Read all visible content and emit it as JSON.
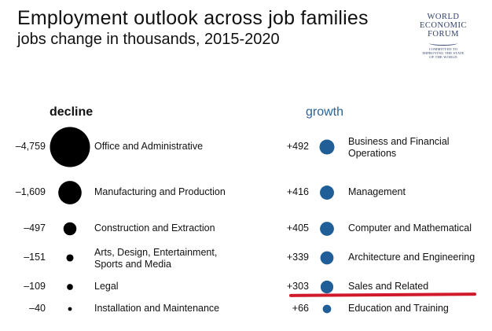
{
  "header": {
    "title": "Employment outlook across job families",
    "subtitle": "jobs change in thousands, 2015-2020"
  },
  "logo": {
    "line1": "WORLD",
    "line2": "ECONOMIC",
    "line3": "FORUM",
    "tagline": [
      "COMMITTED TO",
      "IMPROVING THE STATE",
      "OF THE WORLD"
    ]
  },
  "colors": {
    "decline": "#000000",
    "growth": "#1f5e96",
    "highlight": "#d0192b"
  },
  "chart_data": [
    {
      "type": "scatter",
      "title": "decline",
      "categories": [
        "Office and Administrative",
        "Manufacturing and Production",
        "Construction and Extraction",
        "Arts, Design, Entertainment, Sports and Media",
        "Legal",
        "Installation and Maintenance"
      ],
      "values": [
        -4759,
        -1609,
        -497,
        -151,
        -109,
        -40
      ],
      "labels": [
        "–4,759",
        "–1,609",
        "–497",
        "–151",
        "–109",
        "–40"
      ]
    },
    {
      "type": "scatter",
      "title": "growth",
      "categories": [
        "Business and Financial Operations",
        "Management",
        "Computer and Mathematical",
        "Architecture and Engineering",
        "Sales and Related",
        "Education and Training"
      ],
      "values": [
        492,
        416,
        405,
        339,
        303,
        66
      ],
      "labels": [
        "+492",
        "+416",
        "+405",
        "+339",
        "+303",
        "+66"
      ],
      "highlighted": "Sales and Related"
    }
  ]
}
